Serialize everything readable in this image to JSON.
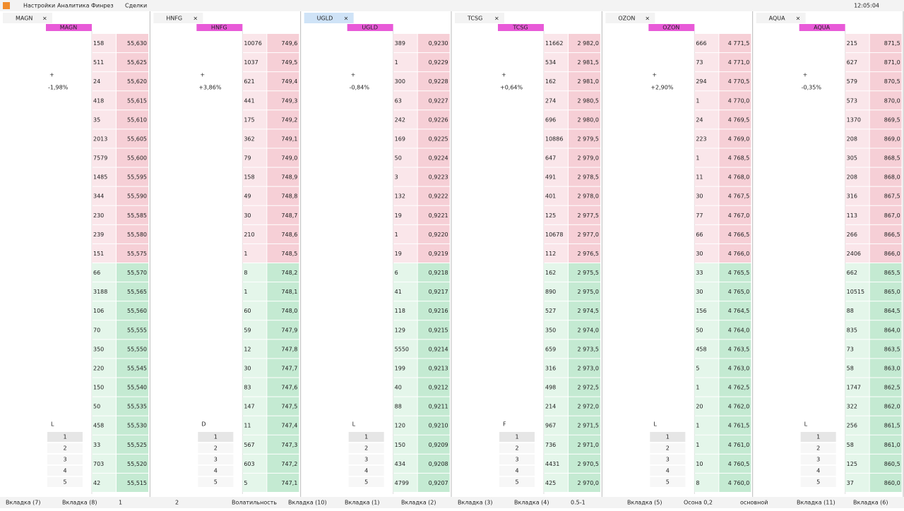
{
  "menu": [
    "Настройки",
    "Аналитика",
    "Финрез",
    "Сделки"
  ],
  "clock": "12:05:04",
  "panels": [
    {
      "ticker": "MAGN",
      "change": "-1,98%",
      "mode": "L",
      "levels": [
        "1",
        "2",
        "3",
        "4",
        "5"
      ],
      "rows": [
        [
          "55,630",
          "158"
        ],
        [
          "55,625",
          "511"
        ],
        [
          "55,620",
          "24"
        ],
        [
          "55,615",
          "418"
        ],
        [
          "55,610",
          "35"
        ],
        [
          "55,605",
          "2013"
        ],
        [
          "55,600",
          "7579"
        ],
        [
          "55,595",
          "1485"
        ],
        [
          "55,590",
          "344"
        ],
        [
          "55,585",
          "230"
        ],
        [
          "55,580",
          "239"
        ],
        [
          "55,575",
          "151"
        ],
        [
          "55,570",
          "66"
        ],
        [
          "55,565",
          "3188"
        ],
        [
          "55,560",
          "106"
        ],
        [
          "55,555",
          "70"
        ],
        [
          "55,550",
          "350"
        ],
        [
          "55,545",
          "220"
        ],
        [
          "55,540",
          "150"
        ],
        [
          "55,535",
          "50"
        ],
        [
          "55,530",
          "458"
        ],
        [
          "55,525",
          "33"
        ],
        [
          "55,520",
          "703"
        ],
        [
          "55,515",
          "42"
        ]
      ],
      "bid_from": 12
    },
    {
      "ticker": "HNFG",
      "change": "+3,86%",
      "mode": "D",
      "levels": [
        "1",
        "2",
        "3",
        "4",
        "5"
      ],
      "rows": [
        [
          "749,6",
          "10076"
        ],
        [
          "749,5",
          "1037"
        ],
        [
          "749,4",
          "621"
        ],
        [
          "749,3",
          "441"
        ],
        [
          "749,2",
          "175"
        ],
        [
          "749,1",
          "362"
        ],
        [
          "749,0",
          "79"
        ],
        [
          "748,9",
          "158"
        ],
        [
          "748,8",
          "49"
        ],
        [
          "748,7",
          "30"
        ],
        [
          "748,6",
          "210"
        ],
        [
          "748,5",
          "1"
        ],
        [
          "748,2",
          "8"
        ],
        [
          "748,1",
          "1"
        ],
        [
          "748,0",
          "60"
        ],
        [
          "747,9",
          "59"
        ],
        [
          "747,8",
          "12"
        ],
        [
          "747,7",
          "30"
        ],
        [
          "747,6",
          "83"
        ],
        [
          "747,5",
          "147"
        ],
        [
          "747,4",
          "11"
        ],
        [
          "747,3",
          "567"
        ],
        [
          "747,2",
          "603"
        ],
        [
          "747,1",
          "5"
        ]
      ],
      "bid_from": 12
    },
    {
      "ticker": "UGLD",
      "change": "-0,84%",
      "mode": "L",
      "levels": [
        "1",
        "2",
        "3",
        "4",
        "5"
      ],
      "rows": [
        [
          "0,9230",
          "389"
        ],
        [
          "0,9229",
          "1"
        ],
        [
          "0,9228",
          "300"
        ],
        [
          "0,9227",
          "63"
        ],
        [
          "0,9226",
          "242"
        ],
        [
          "0,9225",
          "169"
        ],
        [
          "0,9224",
          "50"
        ],
        [
          "0,9223",
          "3"
        ],
        [
          "0,9222",
          "132"
        ],
        [
          "0,9221",
          "19"
        ],
        [
          "0,9220",
          "1"
        ],
        [
          "0,9219",
          "19"
        ],
        [
          "0,9218",
          "6"
        ],
        [
          "0,9217",
          "41"
        ],
        [
          "0,9216",
          "118"
        ],
        [
          "0,9215",
          "129"
        ],
        [
          "0,9214",
          "5550"
        ],
        [
          "0,9213",
          "199"
        ],
        [
          "0,9212",
          "40"
        ],
        [
          "0,9211",
          "88"
        ],
        [
          "0,9210",
          "120"
        ],
        [
          "0,9209",
          "150"
        ],
        [
          "0,9208",
          "434"
        ],
        [
          "0,9207",
          "4799"
        ]
      ],
      "bid_from": 12
    },
    {
      "ticker": "TCSG",
      "change": "+0,64%",
      "mode": "F",
      "levels": [
        "1",
        "2",
        "3",
        "4",
        "5"
      ],
      "rows": [
        [
          "2 982,0",
          "11662"
        ],
        [
          "2 981,5",
          "534"
        ],
        [
          "2 981,0",
          "162"
        ],
        [
          "2 980,5",
          "274"
        ],
        [
          "2 980,0",
          "696"
        ],
        [
          "2 979,5",
          "10886"
        ],
        [
          "2 979,0",
          "647"
        ],
        [
          "2 978,5",
          "491"
        ],
        [
          "2 978,0",
          "401"
        ],
        [
          "2 977,5",
          "125"
        ],
        [
          "2 977,0",
          "10678"
        ],
        [
          "2 976,5",
          "112"
        ],
        [
          "2 975,5",
          "162"
        ],
        [
          "2 975,0",
          "890"
        ],
        [
          "2 974,5",
          "527"
        ],
        [
          "2 974,0",
          "350"
        ],
        [
          "2 973,5",
          "659"
        ],
        [
          "2 973,0",
          "316"
        ],
        [
          "2 972,5",
          "498"
        ],
        [
          "2 972,0",
          "214"
        ],
        [
          "2 971,5",
          "967"
        ],
        [
          "2 971,0",
          "736"
        ],
        [
          "2 970,5",
          "4431"
        ],
        [
          "2 970,0",
          "425"
        ]
      ],
      "bid_from": 12
    },
    {
      "ticker": "OZON",
      "change": "+2,90%",
      "mode": "L",
      "levels": [
        "1",
        "2",
        "3",
        "4",
        "5"
      ],
      "rows": [
        [
          "4 771,5",
          "666"
        ],
        [
          "4 771,0",
          "73"
        ],
        [
          "4 770,5",
          "294"
        ],
        [
          "4 770,0",
          "1"
        ],
        [
          "4 769,5",
          "24"
        ],
        [
          "4 769,0",
          "223"
        ],
        [
          "4 768,5",
          "1"
        ],
        [
          "4 768,0",
          "11"
        ],
        [
          "4 767,5",
          "30"
        ],
        [
          "4 767,0",
          "77"
        ],
        [
          "4 766,5",
          "66"
        ],
        [
          "4 766,0",
          "30"
        ],
        [
          "4 765,5",
          "33"
        ],
        [
          "4 765,0",
          "30"
        ],
        [
          "4 764,5",
          "156"
        ],
        [
          "4 764,0",
          "50"
        ],
        [
          "4 763,5",
          "458"
        ],
        [
          "4 763,0",
          "5"
        ],
        [
          "4 762,5",
          "1"
        ],
        [
          "4 762,0",
          "20"
        ],
        [
          "4 761,5",
          "1"
        ],
        [
          "4 761,0",
          "1"
        ],
        [
          "4 760,5",
          "10"
        ],
        [
          "4 760,0",
          "8"
        ]
      ],
      "bid_from": 12
    },
    {
      "ticker": "AQUA",
      "change": "-0,35%",
      "mode": "L",
      "levels": [
        "1",
        "2",
        "3",
        "4",
        "5"
      ],
      "rows": [
        [
          "871,5",
          "215"
        ],
        [
          "871,0",
          "627"
        ],
        [
          "870,5",
          "579"
        ],
        [
          "870,0",
          "573"
        ],
        [
          "869,5",
          "1370"
        ],
        [
          "869,0",
          "208"
        ],
        [
          "868,5",
          "305"
        ],
        [
          "868,0",
          "208"
        ],
        [
          "867,5",
          "316"
        ],
        [
          "867,0",
          "113"
        ],
        [
          "866,5",
          "266"
        ],
        [
          "866,0",
          "2406"
        ],
        [
          "865,5",
          "662"
        ],
        [
          "865,0",
          "10515"
        ],
        [
          "864,5",
          "88"
        ],
        [
          "864,0",
          "835"
        ],
        [
          "863,5",
          "73"
        ],
        [
          "863,0",
          "58"
        ],
        [
          "862,5",
          "1747"
        ],
        [
          "862,0",
          "322"
        ],
        [
          "861,5",
          "256"
        ],
        [
          "861,0",
          "58"
        ],
        [
          "860,5",
          "125"
        ],
        [
          "860,0",
          "37"
        ]
      ],
      "bid_from": 12
    }
  ],
  "bottom_tabs": [
    "Вкладка (7)",
    "Вкладка (8)",
    "1",
    "2",
    "Волатильность",
    "Вкладка (10)",
    "Вкладка (1)",
    "Вкладка (2)",
    "Вкладка (3)",
    "Вкладка (4)",
    "0.5-1",
    "Вкладка (5)",
    "Осона 0,2",
    "основной",
    "Вкладка (11)",
    "Вкладка (6)"
  ]
}
